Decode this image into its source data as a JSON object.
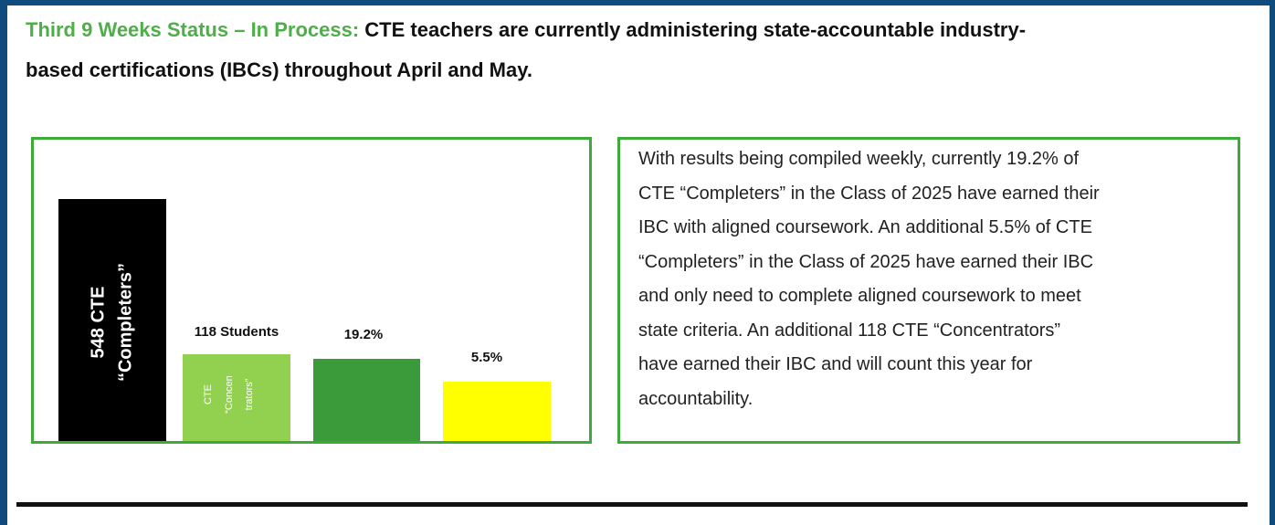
{
  "header": {
    "status": "Third 9 Weeks Status – In Process:",
    "text_lines": [
      " CTE teachers are currently administering state-accountable industry-",
      "based certifications (IBCs) throughout April and May."
    ]
  },
  "figure": {
    "bars": [
      {
        "inner_lines": [
          "548 CTE",
          "“Completers”"
        ]
      },
      {
        "label": "118 Students",
        "inner_lines": [
          "CTE",
          "“Concen",
          "trators”"
        ]
      },
      {
        "label": "19.2%"
      },
      {
        "label": "5.5%"
      }
    ]
  },
  "text_box": {
    "lines": [
      "With results being compiled weekly, currently 19.2% of",
      "CTE “Completers” in the Class of 2025 have earned their",
      "IBC with aligned coursework. An additional 5.5% of CTE",
      "“Completers” in the Class of 2025 have earned their IBC",
      "and only need to complete aligned coursework to meet",
      "state criteria. An additional 118 CTE “Concentrators”",
      "have earned their IBC and will count this year for",
      "accountability."
    ]
  }
}
